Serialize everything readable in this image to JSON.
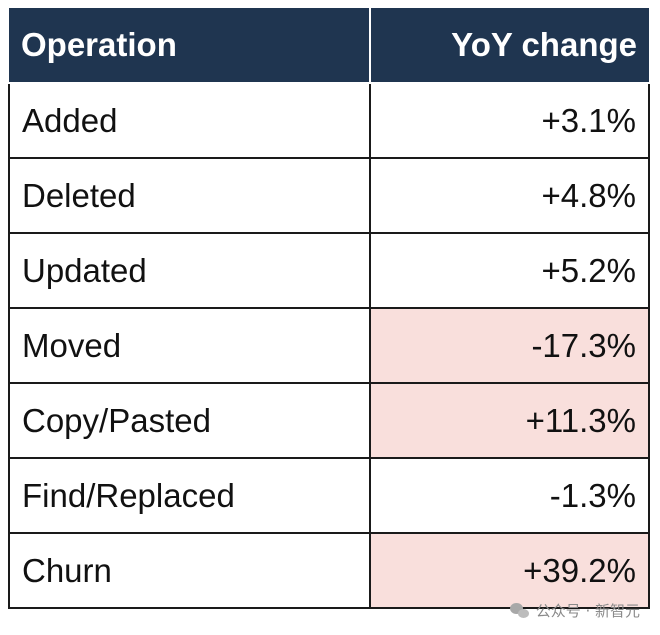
{
  "chart_data": {
    "type": "table",
    "columns": [
      "Operation",
      "YoY change"
    ],
    "rows": [
      {
        "operation": "Added",
        "change": "+3.1%",
        "value": 3.1,
        "highlighted": false
      },
      {
        "operation": "Deleted",
        "change": "+4.8%",
        "value": 4.8,
        "highlighted": false
      },
      {
        "operation": "Updated",
        "change": "+5.2%",
        "value": 5.2,
        "highlighted": false
      },
      {
        "operation": "Moved",
        "change": "-17.3%",
        "value": -17.3,
        "highlighted": true
      },
      {
        "operation": "Copy/Pasted",
        "change": "+11.3%",
        "value": 11.3,
        "highlighted": true
      },
      {
        "operation": "Find/Replaced",
        "change": "-1.3%",
        "value": -1.3,
        "highlighted": false
      },
      {
        "operation": "Churn",
        "change": "+39.2%",
        "value": 39.2,
        "highlighted": true
      }
    ],
    "colors": {
      "header_bg": "#1f3550",
      "header_text": "#ffffff",
      "highlight_bg": "#f9dfdc"
    }
  },
  "watermark": {
    "text": "公众号 · 新智元",
    "icon": "wechat-icon"
  }
}
